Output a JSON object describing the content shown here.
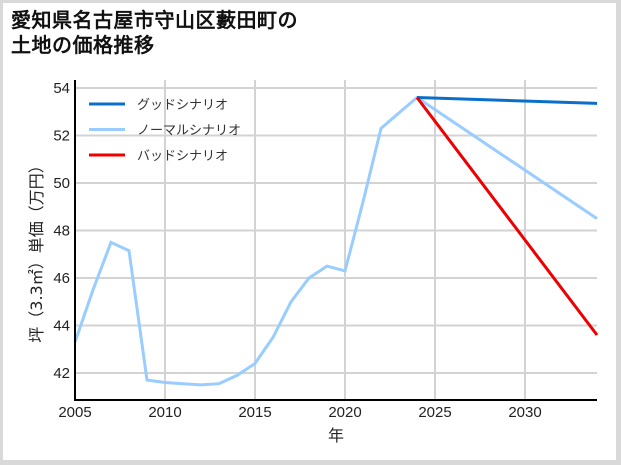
{
  "title_line1": "愛知県名古屋市守山区藪田町の",
  "title_line2": "土地の価格推移",
  "colors": {
    "good": "#0a6fc8",
    "normal": "#99ccff",
    "bad": "#ee0000",
    "grid": "#d3d3d3",
    "axis": "#000000"
  },
  "chart_data": {
    "type": "line",
    "title": "愛知県名古屋市守山区藪田町の土地の価格推移",
    "xlabel": "年",
    "ylabel": "坪（3.3㎡）単価（万円）",
    "xlim": [
      2005,
      2034
    ],
    "ylim": [
      40.9,
      54.2
    ],
    "x_ticks": [
      2005,
      2010,
      2015,
      2020,
      2025,
      2030
    ],
    "y_ticks": [
      42,
      44,
      46,
      48,
      50,
      52,
      54
    ],
    "grid": true,
    "legend_position": "upper left",
    "series": [
      {
        "name": "ノーマルシナリオ",
        "role": "historical+normal",
        "color": "#99ccff",
        "x": [
          2005,
          2006,
          2007,
          2008,
          2009,
          2010,
          2011,
          2012,
          2013,
          2014,
          2015,
          2016,
          2017,
          2018,
          2019,
          2020,
          2021,
          2022,
          2023,
          2024,
          2034
        ],
        "y": [
          43.3,
          45.5,
          47.5,
          47.15,
          41.7,
          41.6,
          41.55,
          41.5,
          41.55,
          41.9,
          42.4,
          43.5,
          45.0,
          46.0,
          46.5,
          46.3,
          49.2,
          52.3,
          52.95,
          53.6,
          48.5
        ]
      },
      {
        "name": "グッドシナリオ",
        "color": "#0a6fc8",
        "x": [
          2024,
          2034
        ],
        "y": [
          53.6,
          53.35
        ]
      },
      {
        "name": "バッドシナリオ",
        "color": "#ee0000",
        "x": [
          2024,
          2034
        ],
        "y": [
          53.6,
          43.6
        ]
      }
    ]
  },
  "legend": [
    {
      "label": "グッドシナリオ",
      "color": "#0a6fc8"
    },
    {
      "label": "ノーマルシナリオ",
      "color": "#99ccff"
    },
    {
      "label": "バッドシナリオ",
      "color": "#ee0000"
    }
  ],
  "axis": {
    "xlabel": "年",
    "ylabel": "坪（3.3㎡）単価（万円）"
  }
}
